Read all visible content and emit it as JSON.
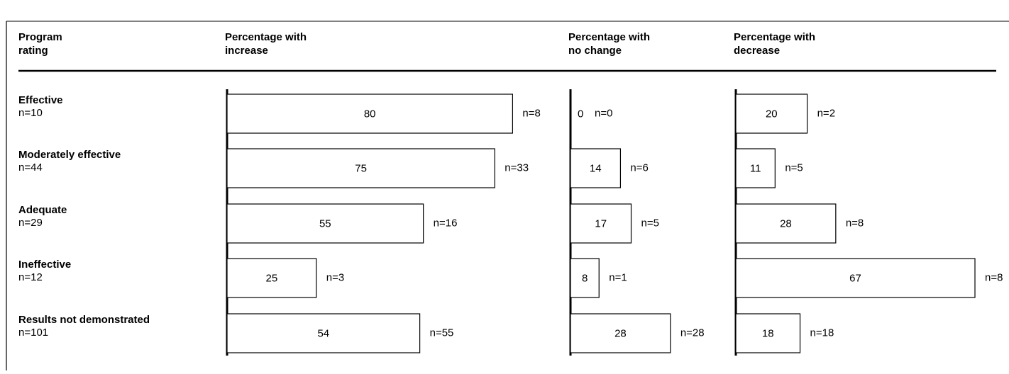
{
  "title": "",
  "chart_data": {
    "type": "bar",
    "orientation": "horizontal",
    "header_row": {
      "rating_header_line1": "Program",
      "rating_header_line2": "rating"
    },
    "panels": [
      {
        "key": "increase",
        "header_line1": "Percentage with",
        "header_line2": "increase"
      },
      {
        "key": "no_change",
        "header_line1": "Percentage with",
        "header_line2": "no change"
      },
      {
        "key": "decrease",
        "header_line1": "Percentage with",
        "header_line2": "decrease"
      }
    ],
    "categories": [
      {
        "label": "Effective",
        "n_label": "n=10"
      },
      {
        "label": "Moderately effective",
        "n_label": "n=44"
      },
      {
        "label": "Adequate",
        "n_label": "n=29"
      },
      {
        "label": "Ineffective",
        "n_label": "n=12"
      },
      {
        "label": "Results not demonstrated",
        "n_label": "n=101"
      }
    ],
    "series": [
      {
        "panel": "increase",
        "values": [
          80,
          75,
          55,
          25,
          54
        ],
        "n_labels": [
          "n=8",
          "n=33",
          "n=16",
          "n=3",
          "n=55"
        ]
      },
      {
        "panel": "no_change",
        "values": [
          0,
          14,
          17,
          8,
          28
        ],
        "n_labels": [
          "n=0",
          "n=6",
          "n=5",
          "n=1",
          "n=28"
        ]
      },
      {
        "panel": "decrease",
        "values": [
          20,
          11,
          28,
          67,
          18
        ],
        "n_labels": [
          "n=2",
          "n=5",
          "n=8",
          "n=8",
          "n=18"
        ]
      }
    ],
    "legend": "none",
    "grid": false
  }
}
